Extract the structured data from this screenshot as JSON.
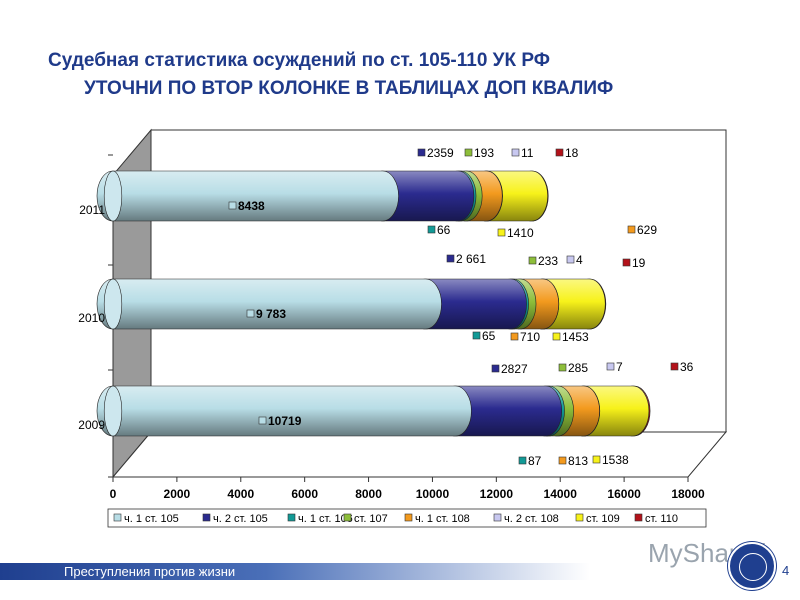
{
  "title": "Судебная статистика осуждений по ст. 105-110 УК РФ",
  "subtitle": "УТОЧНИ ПО ВТОР КОЛОНКЕ В ТАБЛИЦАХ ДОП КВАЛИФ",
  "footer": "Преступления против жизни",
  "page_number": "4",
  "watermark": "MyShared",
  "chart_data": {
    "type": "bar",
    "orientation": "horizontal",
    "stacked": true,
    "three_d": true,
    "categories": [
      "2011",
      "2010",
      "2009"
    ],
    "xlim": [
      0,
      18000
    ],
    "x_ticks": [
      "0",
      "2000",
      "4000",
      "6000",
      "8000",
      "10000",
      "12000",
      "14000",
      "16000",
      "18000"
    ],
    "legend_position": "bottom",
    "series": [
      {
        "name": "ч. 1 ст. 105",
        "color": "#b8dde6",
        "values": [
          8438,
          9783,
          10719
        ],
        "labels": [
          "8438",
          "9 783",
          "10719"
        ]
      },
      {
        "name": "ч. 2 ст. 105",
        "color": "#2b2b8f",
        "values": [
          2359,
          2661,
          2827
        ],
        "labels": [
          "2359",
          "2 661",
          "2827"
        ]
      },
      {
        "name": "ч. 1 ст. 106",
        "color": "#129a96",
        "values": [
          66,
          65,
          87
        ],
        "labels": [
          "66",
          "65",
          "87"
        ]
      },
      {
        "name": "ст. 107",
        "color": "#8dbe3a",
        "values": [
          193,
          233,
          285
        ],
        "labels": [
          "193",
          "233",
          "285"
        ]
      },
      {
        "name": "ч. 1 ст. 108",
        "color": "#f39a1e",
        "values": [
          629,
          710,
          813
        ],
        "labels": [
          "629",
          "710",
          "813"
        ]
      },
      {
        "name": "ч. 2 ст. 108",
        "color": "#c8c8f0",
        "values": [
          11,
          4,
          7
        ],
        "labels": [
          "11",
          "4",
          "7"
        ]
      },
      {
        "name": "ст. 109",
        "color": "#f7f21a",
        "values": [
          1410,
          1453,
          1538
        ],
        "labels": [
          "1410",
          "1453",
          "1538"
        ]
      },
      {
        "name": "ст. 110",
        "color": "#b3121a",
        "values": [
          18,
          19,
          36
        ],
        "labels": [
          "18",
          "19",
          "36"
        ]
      }
    ]
  }
}
